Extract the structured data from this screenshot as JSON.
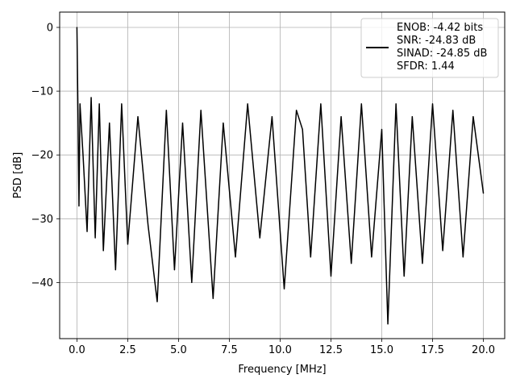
{
  "chart_data": {
    "type": "line",
    "title": "",
    "xlabel": "Frequency [MHz]",
    "ylabel": "PSD [dB]",
    "xlim": [
      -0.85,
      21.05
    ],
    "ylim": [
      -48.8,
      2.4
    ],
    "xticks": [
      0.0,
      2.5,
      5.0,
      7.5,
      10.0,
      12.5,
      15.0,
      17.5,
      20.0
    ],
    "xtick_labels": [
      "0.0",
      "2.5",
      "5.0",
      "7.5",
      "10.0",
      "12.5",
      "15.0",
      "17.5",
      "20.0"
    ],
    "yticks": [
      0,
      -10,
      -20,
      -30,
      -40
    ],
    "ytick_labels": [
      "0",
      "−10",
      "−20",
      "−30",
      "−40"
    ],
    "grid": true,
    "legend_position": "upper-right",
    "line_color": "#000000",
    "series": [
      {
        "name": "",
        "x": [
          0.0,
          0.05,
          0.1,
          0.15,
          0.3,
          0.5,
          0.7,
          0.9,
          1.1,
          1.3,
          1.6,
          1.9,
          2.2,
          2.5,
          3.0,
          3.5,
          3.95,
          4.4,
          4.8,
          5.2,
          5.65,
          6.1,
          6.7,
          7.2,
          7.8,
          8.4,
          9.0,
          9.6,
          10.2,
          10.8,
          11.1,
          11.5,
          12.0,
          12.5,
          13.0,
          13.5,
          14.0,
          14.5,
          15.0,
          15.3,
          15.7,
          16.1,
          16.5,
          17.0,
          17.5,
          18.0,
          18.5,
          19.0,
          19.5,
          20.0
        ],
        "y": [
          0.0,
          -13.0,
          -28.0,
          -12.0,
          -20.0,
          -32.0,
          -11.0,
          -33.0,
          -12.0,
          -35.0,
          -15.0,
          -38.0,
          -12.0,
          -34.0,
          -14.0,
          -31.0,
          -43.0,
          -13.0,
          -38.0,
          -15.0,
          -40.0,
          -13.0,
          -42.5,
          -15.0,
          -36.0,
          -12.0,
          -33.0,
          -14.0,
          -41.0,
          -13.0,
          -16.0,
          -36.0,
          -12.0,
          -39.0,
          -14.0,
          -37.0,
          -12.0,
          -36.0,
          -16.0,
          -46.5,
          -12.0,
          -39.0,
          -14.0,
          -37.0,
          -12.0,
          -35.0,
          -13.0,
          -36.0,
          -14.0,
          -26.0
        ]
      }
    ],
    "legend": {
      "entries": [
        "ENOB: -4.42 bits",
        "SNR: -24.83 dB",
        "SINAD: -24.85 dB",
        "SFDR: 1.44"
      ]
    }
  }
}
